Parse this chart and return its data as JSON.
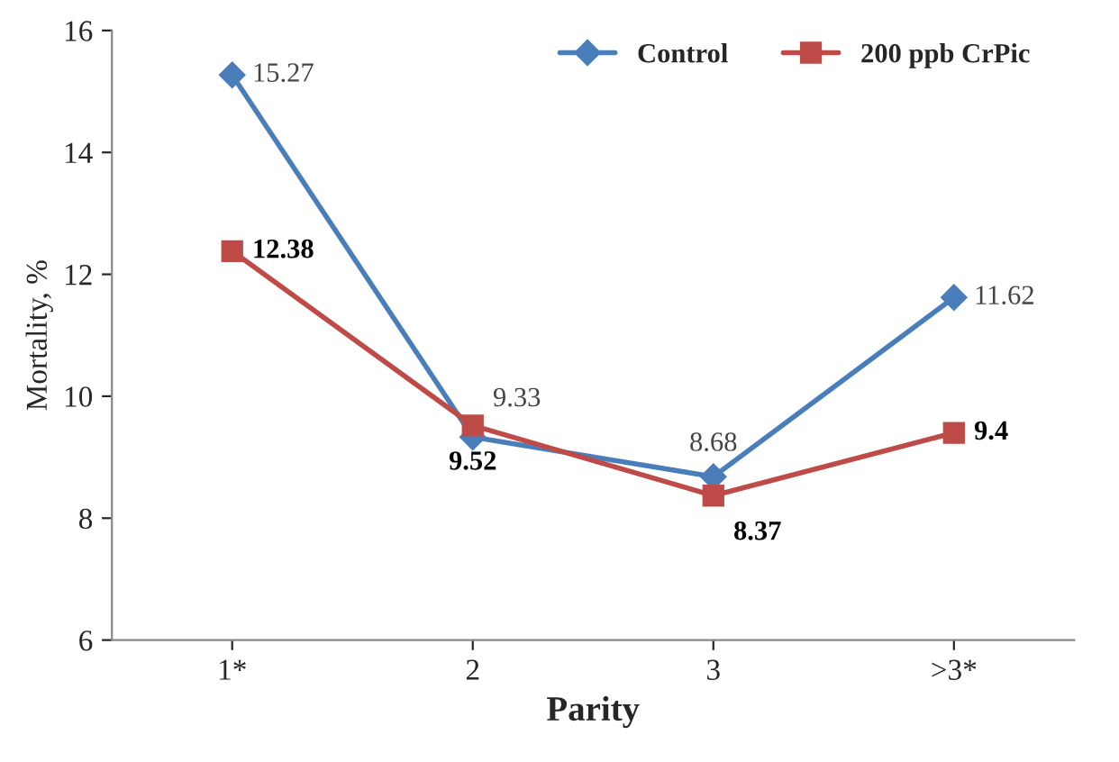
{
  "chart_data": {
    "type": "line",
    "xlabel": "Parity",
    "ylabel": "Mortality, %",
    "categories": [
      "1*",
      "2",
      "3",
      ">3*"
    ],
    "series": [
      {
        "name": "Control",
        "color": "#4a7ebb",
        "marker": "diamond",
        "values": [
          15.27,
          9.33,
          8.68,
          11.62
        ]
      },
      {
        "name": "200 ppb CrPic",
        "color": "#be4b48",
        "marker": "square",
        "values": [
          12.38,
          9.52,
          8.37,
          9.4
        ]
      }
    ],
    "ylim": [
      6,
      16
    ],
    "yticks": [
      6,
      8,
      10,
      12,
      14,
      16
    ],
    "grid": false,
    "legend": "top right",
    "data_labels": true
  }
}
